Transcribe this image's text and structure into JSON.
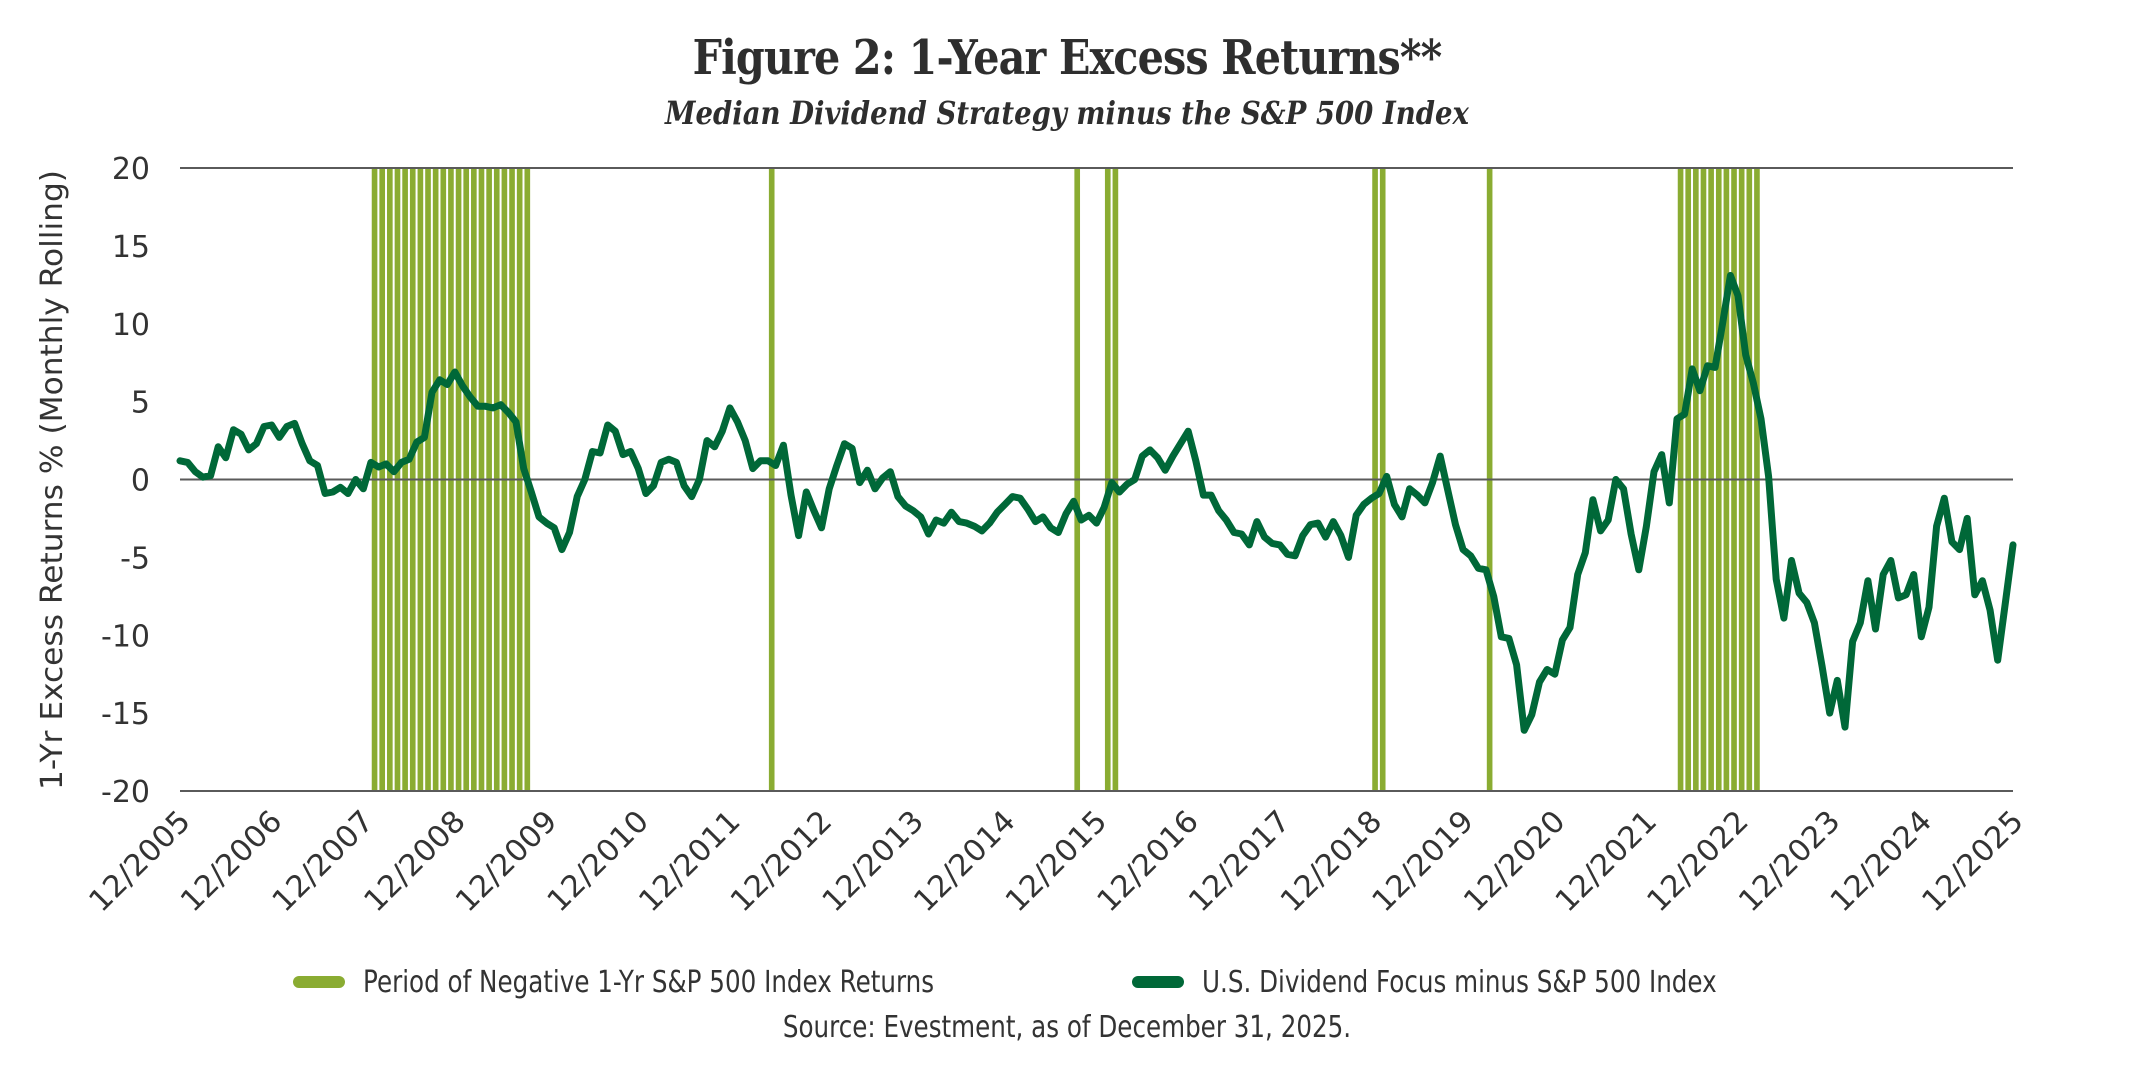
{
  "chart_data": {
    "type": "line",
    "title": "Figure 2: 1-Year Excess Returns**",
    "subtitle": "Median Dividend Strategy minus the S&P 500 Index",
    "xlabel": "",
    "ylabel": "1-Yr Excess Returns % (Monthly Rolling)",
    "ylim": [
      -20,
      20
    ],
    "yticks": [
      20,
      15,
      10,
      5,
      0,
      -5,
      -10,
      -15,
      -20
    ],
    "ytick_labels": [
      "20",
      "15",
      "10",
      "5",
      "0",
      "-5",
      "-10",
      "-15",
      "-20"
    ],
    "x_start": "12/2005",
    "x_end": "12/2025",
    "x_unit": "months since 12/2005",
    "xlim": [
      0,
      240
    ],
    "xtick_labels": [
      "12/2005",
      "12/2006",
      "12/2007",
      "12/2008",
      "12/2009",
      "12/2010",
      "12/2011",
      "12/2012",
      "12/2013",
      "12/2014",
      "12/2015",
      "12/2016",
      "12/2017",
      "12/2018",
      "12/2019",
      "12/2020",
      "12/2021",
      "12/2022",
      "12/2023",
      "12/2024",
      "12/2025"
    ],
    "gridlines": "horizontal at 20, 0, -20",
    "legend_position": "bottom-center",
    "series": [
      {
        "name": "U.S. Dividend Focus minus S&P 500 Index",
        "color": "#006838",
        "kind": "line",
        "values": [
          1.2,
          1.1,
          0.5,
          0.15,
          0.25,
          2.1,
          1.4,
          3.2,
          2.9,
          1.9,
          2.3,
          3.4,
          3.5,
          2.7,
          3.4,
          3.6,
          2.3,
          1.2,
          0.9,
          -0.9,
          -0.8,
          -0.5,
          -0.9,
          0.0,
          -0.6,
          1.1,
          0.8,
          1.0,
          0.5,
          1.1,
          1.3,
          2.4,
          2.7,
          5.6,
          6.4,
          6.1,
          6.9,
          6.0,
          5.3,
          4.7,
          4.7,
          4.6,
          4.8,
          4.3,
          3.7,
          0.7,
          -0.8,
          -2.4,
          -2.8,
          -3.1,
          -4.5,
          -3.4,
          -1.1,
          0.0,
          1.8,
          1.7,
          3.5,
          3.1,
          1.6,
          1.8,
          0.7,
          -0.9,
          -0.4,
          1.1,
          1.3,
          1.1,
          -0.4,
          -1.1,
          0.0,
          2.5,
          2.1,
          3.1,
          4.6,
          3.7,
          2.5,
          0.7,
          1.2,
          1.2,
          0.9,
          2.2,
          -1.0,
          -3.6,
          -0.8,
          -2.0,
          -3.1,
          -0.6,
          0.9,
          2.3,
          2.0,
          -0.2,
          0.6,
          -0.6,
          0.1,
          0.5,
          -1.1,
          -1.7,
          -2.0,
          -2.4,
          -3.5,
          -2.6,
          -2.8,
          -2.1,
          -2.7,
          -2.8,
          -3.0,
          -3.3,
          -2.8,
          -2.1,
          -1.6,
          -1.1,
          -1.2,
          -1.9,
          -2.7,
          -2.4,
          -3.1,
          -3.4,
          -2.2,
          -1.4,
          -2.6,
          -2.3,
          -2.8,
          -1.8,
          -0.2,
          -0.8,
          -0.3,
          0.0,
          1.5,
          1.9,
          1.4,
          0.6,
          1.5,
          2.3,
          3.1,
          1.2,
          -1.0,
          -1.0,
          -2.0,
          -2.6,
          -3.4,
          -3.5,
          -4.2,
          -2.7,
          -3.7,
          -4.1,
          -4.2,
          -4.8,
          -4.9,
          -3.6,
          -2.9,
          -2.8,
          -3.7,
          -2.7,
          -3.6,
          -5.0,
          -2.3,
          -1.6,
          -1.2,
          -0.9,
          0.2,
          -1.6,
          -2.4,
          -0.6,
          -1.0,
          -1.5,
          -0.2,
          1.5,
          -0.7,
          -2.9,
          -4.5,
          -4.9,
          -5.7,
          -5.8,
          -7.5,
          -10.1,
          -10.2,
          -11.9,
          -16.1,
          -15.1,
          -13.0,
          -12.2,
          -12.5,
          -10.3,
          -9.5,
          -6.1,
          -4.7,
          -1.3,
          -3.3,
          -2.6,
          0.0,
          -0.6,
          -3.5,
          -5.8,
          -3.0,
          0.5,
          1.6,
          -1.5,
          3.9,
          4.2,
          7.1,
          5.7,
          7.3,
          7.2,
          10.1,
          13.1,
          11.8,
          8.0,
          6.2,
          3.9,
          0.2,
          -6.4,
          -8.9,
          -5.2,
          -7.3,
          -7.9,
          -9.2,
          -12.0,
          -15.0,
          -12.9,
          -15.9,
          -10.4,
          -9.2,
          -6.5,
          -9.6,
          -6.1,
          -5.2,
          -7.6,
          -7.4,
          -6.1,
          -10.1,
          -8.2,
          -3.0,
          -1.2,
          -4.0,
          -4.5,
          -2.5,
          -7.4,
          -6.5,
          -8.4,
          -11.6,
          -7.9,
          -4.2
        ]
      },
      {
        "name": "Period of Negative 1-Yr S&P 500 Index Returns",
        "color": "#8aac32",
        "kind": "bars",
        "months": [
          25,
          26,
          27,
          28,
          29,
          30,
          31,
          32,
          33,
          34,
          35,
          36,
          37,
          38,
          39,
          40,
          41,
          42,
          43,
          44,
          45,
          77,
          117,
          121,
          122,
          156,
          157,
          171,
          196,
          197,
          198,
          199,
          200,
          201,
          202,
          203,
          204,
          205,
          206
        ]
      }
    ]
  },
  "legend": {
    "items": [
      {
        "label": "Period of Negative 1-Yr S&P 500 Index Returns",
        "color": "#8aac32"
      },
      {
        "label": "U.S. Dividend Focus minus S&P 500 Index",
        "color": "#006838"
      }
    ]
  },
  "source": "Source: Evestment, as of December 31, 2025."
}
